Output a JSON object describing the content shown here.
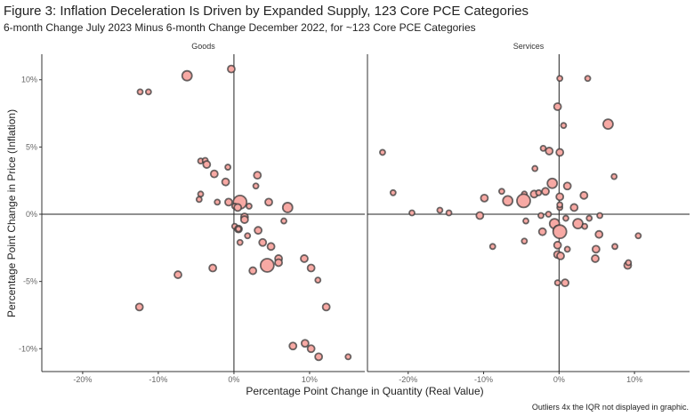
{
  "chart_data": {
    "type": "scatter",
    "title": "Figure 3: Inflation Deceleration Is Driven by Expanded Supply, 123 Core PCE Categories",
    "subtitle": "6-month Change July 2023 Minus 6-month Change December 2022, for ~123 Core PCE Categories",
    "xlabel": "Percentage Point Change in Quantity (Real Value)",
    "ylabel": "Percentage Point Change in Price (Inflation)",
    "caption": "Outliers 4x the IQR not displayed in graphic.",
    "xlim": [
      -25.4,
      17.3
    ],
    "ylim": [
      -11.7,
      11.9
    ],
    "x_ticks": [
      "-20%",
      "-10%",
      "0%",
      "10%"
    ],
    "x_tick_values": [
      -20,
      -10,
      0,
      10
    ],
    "y_ticks": [
      "10%",
      "5%",
      "0%",
      "-5%",
      "-10%"
    ],
    "y_tick_values": [
      10,
      5,
      0,
      -5,
      -10
    ],
    "grid": false,
    "reference_lines": {
      "x": 0,
      "y": 0
    },
    "point_fill": "#f7a9a4",
    "point_stroke": "#3a3a3a",
    "panels": [
      {
        "name": "Goods",
        "points": [
          [
            -0.35,
            10.8,
            2
          ],
          [
            -6.2,
            10.3,
            3
          ],
          [
            -12.4,
            9.1,
            1
          ],
          [
            -11.3,
            9.1,
            1
          ],
          [
            -4.4,
            3.96,
            1
          ],
          [
            -3.8,
            4.0,
            1
          ],
          [
            -3.6,
            3.7,
            2
          ],
          [
            -0.8,
            3.5,
            1
          ],
          [
            -2.6,
            3.0,
            2
          ],
          [
            3.1,
            2.9,
            2
          ],
          [
            -1.1,
            2.4,
            2
          ],
          [
            2.9,
            2.1,
            1
          ],
          [
            -4.4,
            1.5,
            1
          ],
          [
            -4.6,
            1.1,
            1
          ],
          [
            -2.2,
            0.9,
            1
          ],
          [
            -0.7,
            0.9,
            2
          ],
          [
            0.8,
            0.9,
            4
          ],
          [
            0.1,
            0.6,
            1
          ],
          [
            0.5,
            0.5,
            2
          ],
          [
            2.0,
            0.6,
            1
          ],
          [
            4.6,
            0.9,
            2
          ],
          [
            7.1,
            0.5,
            3
          ],
          [
            1.4,
            -0.2,
            2
          ],
          [
            1.4,
            -0.4,
            2
          ],
          [
            6.6,
            -0.5,
            1
          ],
          [
            0.1,
            -0.9,
            1
          ],
          [
            0.6,
            -1.1,
            2
          ],
          [
            0.6,
            -1.1,
            1
          ],
          [
            3.2,
            -1.2,
            2
          ],
          [
            1.8,
            -1.6,
            1
          ],
          [
            0.8,
            -2.1,
            1
          ],
          [
            3.8,
            -2.1,
            2
          ],
          [
            4.9,
            -2.4,
            2
          ],
          [
            5.9,
            -3.3,
            2
          ],
          [
            5.9,
            -3.6,
            2
          ],
          [
            9.3,
            -3.3,
            2
          ],
          [
            10.2,
            -4.0,
            2
          ],
          [
            11.1,
            -4.9,
            1
          ],
          [
            4.4,
            -3.8,
            4
          ],
          [
            2.5,
            -4.2,
            2
          ],
          [
            -2.8,
            -4.0,
            2
          ],
          [
            -7.4,
            -4.5,
            2
          ],
          [
            -12.5,
            -6.9,
            2
          ],
          [
            12.2,
            -6.9,
            2
          ],
          [
            7.8,
            -9.8,
            2
          ],
          [
            9.4,
            -9.6,
            2
          ],
          [
            10.2,
            -10.0,
            2
          ],
          [
            11.2,
            -10.6,
            2
          ],
          [
            15.1,
            -10.6,
            1
          ]
        ]
      },
      {
        "name": "Services",
        "points": [
          [
            0.1,
            10.1,
            1
          ],
          [
            3.8,
            10.1,
            1
          ],
          [
            -0.2,
            8.0,
            2
          ],
          [
            0.6,
            6.6,
            1
          ],
          [
            6.5,
            6.7,
            3
          ],
          [
            -23.4,
            4.6,
            1
          ],
          [
            -2.1,
            4.9,
            1
          ],
          [
            -1.3,
            4.7,
            2
          ],
          [
            0.1,
            4.6,
            2
          ],
          [
            -3.2,
            3.4,
            1
          ],
          [
            7.3,
            2.8,
            1
          ],
          [
            -0.9,
            2.3,
            3
          ],
          [
            1.1,
            2.1,
            2
          ],
          [
            -22.0,
            1.6,
            1
          ],
          [
            -7.6,
            1.7,
            1
          ],
          [
            -3.3,
            1.5,
            2
          ],
          [
            -4.6,
            1.5,
            1
          ],
          [
            -2.7,
            1.6,
            1
          ],
          [
            -1.8,
            1.7,
            2
          ],
          [
            -9.9,
            1.2,
            2
          ],
          [
            -6.8,
            1.0,
            3
          ],
          [
            -4.7,
            1.0,
            4
          ],
          [
            3.3,
            1.4,
            2
          ],
          [
            0.1,
            1.3,
            2
          ],
          [
            -19.5,
            0.1,
            1
          ],
          [
            -15.8,
            0.3,
            1
          ],
          [
            -14.6,
            0.1,
            1
          ],
          [
            -10.5,
            -0.1,
            2
          ],
          [
            -2.4,
            -0.1,
            1
          ],
          [
            -1.4,
            0.0,
            1
          ],
          [
            0.1,
            0.5,
            1
          ],
          [
            0.1,
            0.7,
            1
          ],
          [
            2.0,
            0.5,
            2
          ],
          [
            0.9,
            -0.3,
            1
          ],
          [
            4.0,
            -0.3,
            1
          ],
          [
            5.4,
            -0.1,
            1
          ],
          [
            -4.4,
            -0.5,
            1
          ],
          [
            -0.6,
            -0.7,
            3
          ],
          [
            2.5,
            -0.7,
            3
          ],
          [
            3.4,
            -0.9,
            1
          ],
          [
            -2.2,
            -1.3,
            2
          ],
          [
            -0.1,
            -1.2,
            3
          ],
          [
            0.1,
            -1.3,
            4
          ],
          [
            5.3,
            -1.5,
            2
          ],
          [
            10.5,
            -1.6,
            1
          ],
          [
            -4.6,
            -2.0,
            1
          ],
          [
            -8.8,
            -2.4,
            1
          ],
          [
            -0.2,
            -2.3,
            2
          ],
          [
            1.1,
            -2.6,
            1
          ],
          [
            4.9,
            -2.6,
            2
          ],
          [
            7.4,
            -2.4,
            1
          ],
          [
            4.8,
            -3.3,
            2
          ],
          [
            -0.2,
            -3.0,
            2
          ],
          [
            0.2,
            -3.1,
            2
          ],
          [
            9.1,
            -3.8,
            2
          ],
          [
            9.2,
            -3.6,
            1
          ],
          [
            -0.2,
            -5.1,
            1
          ],
          [
            0.8,
            -5.1,
            2
          ]
        ]
      }
    ]
  }
}
